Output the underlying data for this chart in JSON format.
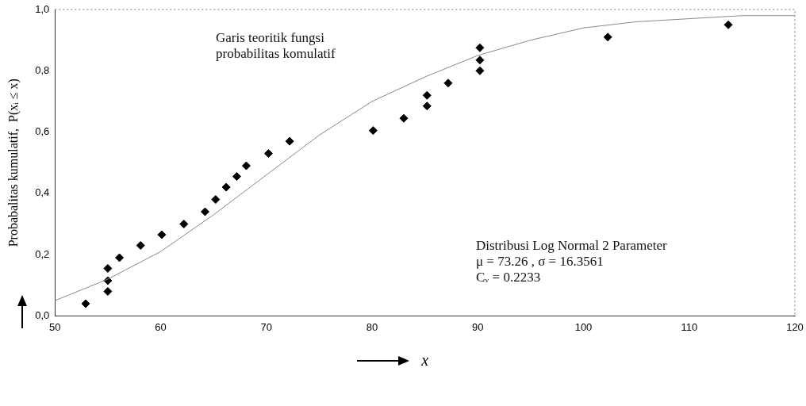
{
  "chart_data": {
    "type": "scatter",
    "xlabel": "x",
    "ylabel": "Probabalitas kumulatif,  P(xᵢ ≤ x)",
    "xlim": [
      50,
      120
    ],
    "xticks": [
      50,
      60,
      70,
      80,
      90,
      100,
      110,
      120
    ],
    "ylim": [
      0,
      1
    ],
    "yticks": [
      {
        "value": 0,
        "label": "0,0"
      },
      {
        "value": 0.2,
        "label": "0,2"
      },
      {
        "value": 0.4,
        "label": "0,4"
      },
      {
        "value": 0.6,
        "label": "0,6"
      },
      {
        "value": 0.8,
        "label": "0,8"
      },
      {
        "value": 1,
        "label": "1,0"
      }
    ],
    "grid": false,
    "legend": false,
    "marker": "diamond",
    "series": [
      {
        "type": "line",
        "color": "#888888",
        "marker": "none",
        "line_style": "solid",
        "x": [
          50,
          55,
          60,
          65,
          70,
          75,
          80,
          85,
          90,
          95,
          100,
          105,
          110,
          115,
          120
        ],
        "values": [
          0.05,
          0.12,
          0.21,
          0.33,
          0.46,
          0.59,
          0.7,
          0.78,
          0.85,
          0.9,
          0.94,
          0.96,
          0.97,
          0.98,
          0.98
        ]
      },
      {
        "color": "#000000",
        "x": [
          52.9,
          55.0,
          55.0,
          55.0,
          56.1,
          58.1,
          60.1,
          62.2,
          64.2,
          65.2,
          66.2,
          67.2,
          68.1,
          70.2,
          72.2,
          80.1,
          83.0,
          85.2,
          85.2,
          87.2,
          90.2,
          90.2,
          90.2,
          102.3,
          113.7
        ],
        "values": [
          0.04,
          0.08,
          0.115,
          0.155,
          0.19,
          0.23,
          0.265,
          0.3,
          0.34,
          0.38,
          0.42,
          0.455,
          0.49,
          0.53,
          0.57,
          0.605,
          0.645,
          0.685,
          0.72,
          0.76,
          0.8,
          0.835,
          0.875,
          0.91,
          0.95
        ]
      }
    ],
    "annotations": [
      "Garis teoritik fungsi\nprobabilitas komulatif",
      "Distribusi Log Normal 2 Parameter",
      "μ = 73.26 , σ = 16.3561",
      "Cᵥ = 0.2233"
    ]
  }
}
